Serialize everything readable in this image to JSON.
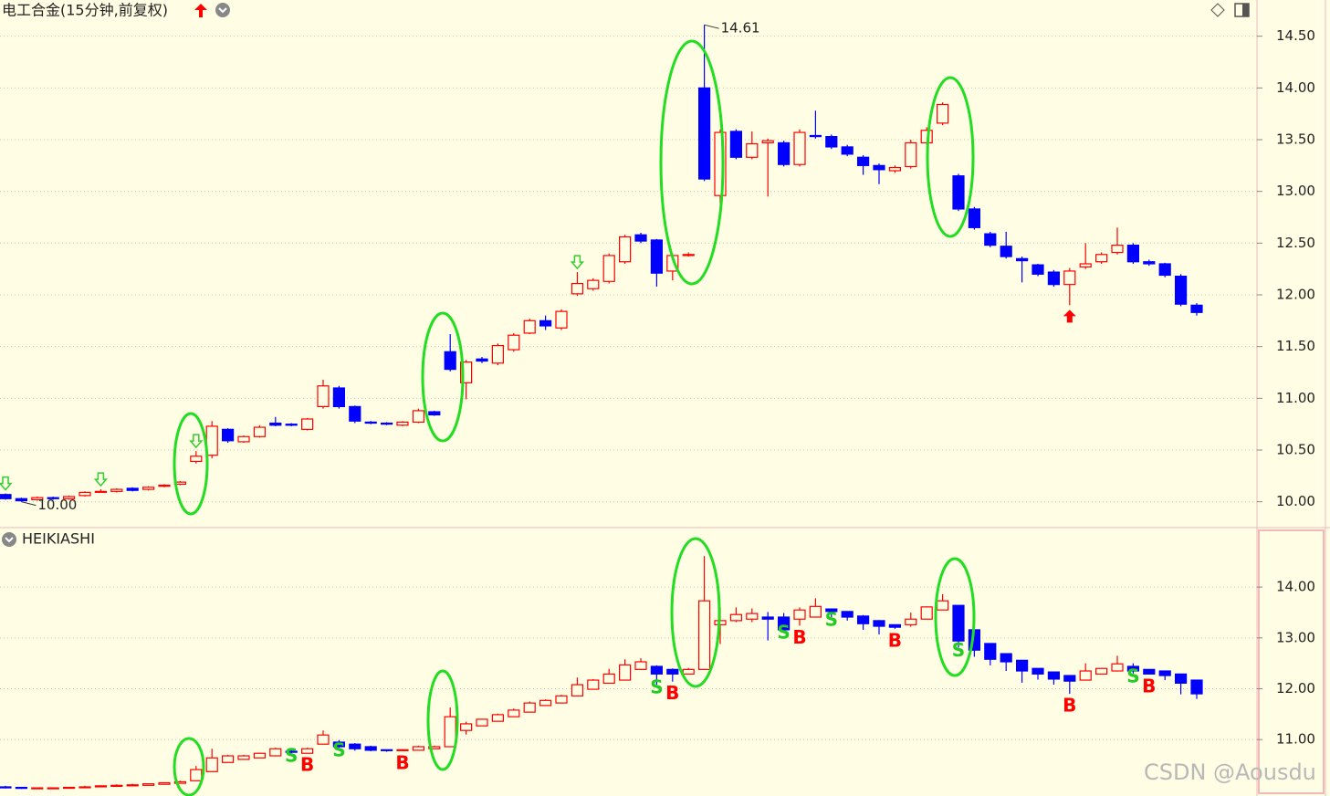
{
  "chart_data": [
    {
      "type": "candlestick",
      "title": "电工合金(15分钟,前复权)",
      "ylim": [
        9.75,
        14.85
      ],
      "yticks": [
        {
          "value": 10,
          "label": "10.00"
        },
        {
          "value": 10.5,
          "label": "10.50"
        },
        {
          "value": 11,
          "label": "11.00"
        },
        {
          "value": 11.5,
          "label": "11.50"
        },
        {
          "value": 12,
          "label": "12.00"
        },
        {
          "value": 12.5,
          "label": "12.50"
        },
        {
          "value": 13,
          "label": "13.00"
        },
        {
          "value": 13.5,
          "label": "13.50"
        },
        {
          "value": 14,
          "label": "14.00"
        },
        {
          "value": 14.5,
          "label": "14.50"
        }
      ],
      "grid": true,
      "up_color": "#ff0000",
      "down_color": "#0000ff",
      "open": [
        10.07,
        10.03,
        10.02,
        10.04,
        10.03,
        10.06,
        10.1,
        10.1,
        10.13,
        10.12,
        10.15,
        10.17,
        10.39,
        10.45,
        10.7,
        10.58,
        10.63,
        10.76,
        10.75,
        10.7,
        10.92,
        11.1,
        10.92,
        10.77,
        10.76,
        10.74,
        10.77,
        10.87,
        11.45,
        11.15,
        11.38,
        11.34,
        11.47,
        11.63,
        11.75,
        11.68,
        12.01,
        12.06,
        12.13,
        12.32,
        12.58,
        12.53,
        12.23,
        12.38,
        14.0,
        12.96,
        13.58,
        13.33,
        13.47,
        13.47,
        13.26,
        13.54,
        13.53,
        13.43,
        13.33,
        13.25,
        13.2,
        13.24,
        13.47,
        13.66,
        13.15,
        12.83,
        12.59,
        12.47,
        12.35,
        12.29,
        12.22,
        12.1,
        12.27,
        12.32,
        12.41,
        12.48,
        12.32,
        12.3,
        12.18,
        11.9
      ],
      "high": [
        10.08,
        10.04,
        10.05,
        10.05,
        10.06,
        10.1,
        10.12,
        10.13,
        10.14,
        10.15,
        10.17,
        10.2,
        10.49,
        10.78,
        10.71,
        10.64,
        10.74,
        10.82,
        10.76,
        10.81,
        11.18,
        11.12,
        10.93,
        10.78,
        10.77,
        10.78,
        10.9,
        10.88,
        11.62,
        11.37,
        11.4,
        11.53,
        11.63,
        11.77,
        11.8,
        11.86,
        12.22,
        12.16,
        12.4,
        12.58,
        12.6,
        12.54,
        12.4,
        12.41,
        14.61,
        13.6,
        13.6,
        13.58,
        13.51,
        13.49,
        13.6,
        13.78,
        13.55,
        13.45,
        13.35,
        13.27,
        13.25,
        13.5,
        13.62,
        13.86,
        13.17,
        12.85,
        12.61,
        12.61,
        12.37,
        12.3,
        12.24,
        12.26,
        12.5,
        12.41,
        12.65,
        12.5,
        12.34,
        12.31,
        12.2,
        11.92
      ],
      "low": [
        10.02,
        10.0,
        10.01,
        10.02,
        10.02,
        10.05,
        10.09,
        10.09,
        10.1,
        10.11,
        10.14,
        10.16,
        10.37,
        10.42,
        10.57,
        10.57,
        10.62,
        10.73,
        10.73,
        10.69,
        10.9,
        10.9,
        10.76,
        10.75,
        10.74,
        10.73,
        10.76,
        10.83,
        11.26,
        10.99,
        11.34,
        11.32,
        11.45,
        11.62,
        11.66,
        11.66,
        11.99,
        12.04,
        12.11,
        12.3,
        12.5,
        12.08,
        12.14,
        12.37,
        13.1,
        12.88,
        13.31,
        13.31,
        12.95,
        13.24,
        13.24,
        13.51,
        13.41,
        13.34,
        13.16,
        13.07,
        13.18,
        13.22,
        13.45,
        13.64,
        12.81,
        12.63,
        12.46,
        12.35,
        12.12,
        12.18,
        12.08,
        11.9,
        12.25,
        12.3,
        12.39,
        12.3,
        12.28,
        12.17,
        11.89,
        11.8
      ],
      "close": [
        10.03,
        10.01,
        10.04,
        10.03,
        10.05,
        10.09,
        10.1,
        10.12,
        10.11,
        10.14,
        10.16,
        10.19,
        10.44,
        10.73,
        10.59,
        10.63,
        10.72,
        10.74,
        10.74,
        10.8,
        11.12,
        10.92,
        10.78,
        10.76,
        10.75,
        10.77,
        10.88,
        10.84,
        11.28,
        11.35,
        11.36,
        11.51,
        11.61,
        11.75,
        11.7,
        11.84,
        12.11,
        12.14,
        12.38,
        12.56,
        12.52,
        12.21,
        12.38,
        12.39,
        13.12,
        13.57,
        13.33,
        13.46,
        13.49,
        13.26,
        13.57,
        13.53,
        13.43,
        13.36,
        13.25,
        13.21,
        13.23,
        13.47,
        13.59,
        13.84,
        12.83,
        12.65,
        12.48,
        12.37,
        12.33,
        12.2,
        12.1,
        12.23,
        12.3,
        12.39,
        12.48,
        12.32,
        12.3,
        12.19,
        11.91,
        11.83
      ],
      "annotations": [
        {
          "index": 44,
          "value": 14.61,
          "label": "14.61"
        },
        {
          "index": 1,
          "value": 10,
          "label": "10.00"
        }
      ],
      "arrows": [
        {
          "index": 0,
          "direction": "down",
          "color": "#33cc33"
        },
        {
          "index": 6,
          "direction": "down",
          "color": "#33cc33"
        },
        {
          "index": 12,
          "direction": "down",
          "color": "#33cc33"
        },
        {
          "index": 36,
          "direction": "down",
          "color": "#33cc33"
        },
        {
          "index": 67,
          "direction": "up",
          "color": "#ff0000"
        }
      ]
    },
    {
      "type": "candlestick",
      "title": "HEIKIASHI",
      "ylim": [
        9.89,
        15.17
      ],
      "yticks": [
        {
          "value": 11,
          "label": "11.00"
        },
        {
          "value": 12,
          "label": "12.00"
        },
        {
          "value": 13,
          "label": "13.00"
        },
        {
          "value": 14,
          "label": "14.00"
        }
      ],
      "grid": true,
      "up_color": "#ff0000",
      "down_color": "#0000ff",
      "open": [
        10.07,
        10.06,
        10.05,
        10.05,
        10.05,
        10.06,
        10.07,
        10.08,
        10.09,
        10.1,
        10.12,
        10.14,
        10.19,
        10.37,
        10.55,
        10.61,
        10.64,
        10.68,
        10.77,
        10.73,
        10.91,
        10.95,
        10.91,
        10.86,
        10.8,
        10.79,
        10.79,
        10.82,
        10.86,
        11.18,
        11.27,
        11.36,
        11.45,
        11.54,
        11.67,
        11.72,
        11.86,
        11.99,
        12.11,
        12.17,
        12.38,
        12.44,
        12.38,
        12.29,
        12.38,
        13.26,
        13.34,
        13.37,
        13.41,
        13.41,
        13.37,
        13.41,
        13.57,
        13.52,
        13.43,
        13.34,
        13.26,
        13.26,
        13.37,
        13.55,
        13.64,
        13.16,
        12.89,
        12.69,
        12.56,
        12.4,
        12.33,
        12.26,
        12.17,
        12.29,
        12.35,
        12.44,
        12.38,
        12.35,
        12.29,
        12.17
      ],
      "high": [
        10.09,
        10.07,
        10.06,
        10.06,
        10.07,
        10.09,
        10.1,
        10.12,
        10.13,
        10.14,
        10.16,
        10.19,
        10.48,
        10.82,
        10.7,
        10.7,
        10.74,
        10.84,
        10.79,
        10.84,
        11.18,
        10.99,
        10.93,
        10.88,
        10.8,
        10.81,
        10.88,
        10.88,
        11.63,
        11.35,
        11.41,
        11.51,
        11.61,
        11.75,
        11.79,
        11.88,
        12.22,
        12.19,
        12.39,
        12.58,
        12.6,
        12.46,
        12.4,
        12.41,
        14.61,
        13.6,
        13.6,
        13.58,
        13.51,
        13.49,
        13.6,
        13.78,
        13.57,
        13.52,
        13.45,
        13.35,
        13.26,
        13.5,
        13.62,
        13.86,
        13.64,
        13.17,
        12.89,
        12.69,
        12.56,
        12.4,
        12.33,
        12.26,
        12.5,
        12.41,
        12.65,
        12.5,
        12.38,
        12.35,
        12.29,
        12.17
      ],
      "low": [
        10.04,
        10.03,
        10.03,
        10.04,
        10.04,
        10.06,
        10.07,
        10.08,
        10.09,
        10.1,
        10.12,
        10.14,
        10.19,
        10.37,
        10.55,
        10.61,
        10.64,
        10.68,
        10.73,
        10.73,
        10.91,
        10.84,
        10.78,
        10.77,
        10.76,
        10.77,
        10.79,
        10.82,
        10.86,
        11.1,
        11.27,
        11.36,
        11.45,
        11.54,
        11.67,
        11.72,
        11.86,
        11.99,
        12.11,
        12.17,
        12.38,
        12.08,
        12.14,
        12.29,
        12.38,
        12.88,
        13.31,
        13.31,
        12.95,
        13.16,
        13.24,
        13.41,
        13.41,
        13.34,
        13.16,
        13.07,
        13.18,
        13.22,
        13.37,
        13.55,
        12.81,
        12.63,
        12.46,
        12.35,
        12.12,
        12.18,
        12.08,
        11.9,
        12.17,
        12.29,
        12.35,
        12.3,
        12.28,
        12.17,
        11.89,
        11.8
      ],
      "close": [
        10.05,
        10.04,
        10.05,
        10.05,
        10.06,
        10.07,
        10.09,
        10.1,
        10.11,
        10.13,
        10.15,
        10.17,
        10.41,
        10.64,
        10.68,
        10.68,
        10.73,
        10.82,
        10.75,
        10.82,
        11.09,
        10.86,
        10.82,
        10.79,
        10.79,
        10.8,
        10.86,
        10.86,
        11.45,
        11.31,
        11.4,
        11.49,
        11.58,
        11.72,
        11.77,
        11.86,
        12.08,
        12.17,
        12.29,
        12.47,
        12.53,
        12.29,
        12.29,
        12.38,
        13.73,
        13.34,
        13.46,
        13.48,
        13.37,
        13.16,
        13.55,
        13.62,
        13.52,
        13.41,
        13.28,
        13.23,
        13.21,
        13.37,
        13.61,
        13.73,
        12.94,
        12.76,
        12.58,
        12.53,
        12.35,
        12.29,
        12.19,
        12.15,
        12.35,
        12.4,
        12.49,
        12.35,
        12.29,
        12.26,
        12.11,
        11.9
      ],
      "signals": [
        {
          "index": 18,
          "label": "S",
          "color": "#22cc22"
        },
        {
          "index": 19,
          "label": "B",
          "color": "#ff0000"
        },
        {
          "index": 21,
          "label": "S",
          "color": "#22cc22"
        },
        {
          "index": 25,
          "label": "B",
          "color": "#ff0000"
        },
        {
          "index": 41,
          "label": "S",
          "color": "#22cc22"
        },
        {
          "index": 42,
          "label": "B",
          "color": "#ff0000"
        },
        {
          "index": 49,
          "label": "S",
          "color": "#22cc22"
        },
        {
          "index": 50,
          "label": "B",
          "color": "#ff0000"
        },
        {
          "index": 52,
          "label": "S",
          "color": "#22cc22"
        },
        {
          "index": 56,
          "label": "B",
          "color": "#ff0000"
        },
        {
          "index": 60,
          "label": "S",
          "color": "#22cc22"
        },
        {
          "index": 67,
          "label": "B",
          "color": "#ff0000"
        },
        {
          "index": 71,
          "label": "S",
          "color": "#22cc22"
        },
        {
          "index": 72,
          "label": "B",
          "color": "#ff0000"
        }
      ]
    }
  ],
  "watermark": "CSDN @Aousdu"
}
